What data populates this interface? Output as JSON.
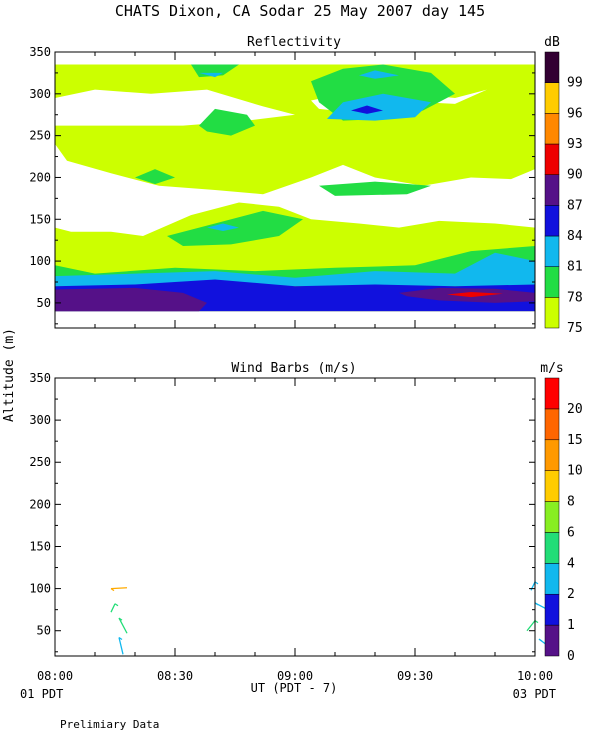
{
  "title": "CHATS Dixon, CA  Sodar  25 May 2007  day 145",
  "y_axis_label": "Altitude (m)",
  "footnote": "Prelimiary Data",
  "colors": {
    "axis": "#000000",
    "refl_palette": [
      "#ccff00",
      "#22dd44",
      "#11b8ee",
      "#1111dd",
      "#551188",
      "#ee0000",
      "#ff8800",
      "#ffcc00",
      "#330033"
    ],
    "wind_palette": [
      "#551188",
      "#1111dd",
      "#11b8ee",
      "#22dd77",
      "#88ee22",
      "#ffcc00",
      "#ff9900",
      "#ff6600",
      "#ff0000"
    ]
  },
  "chart_data": [
    {
      "type": "heatmap",
      "title": "Reflectivity",
      "colorbar_unit": "dB",
      "colorbar_ticks": [
        "75",
        "78",
        "81",
        "84",
        "87",
        "90",
        "93",
        "96",
        "99"
      ],
      "x_ticks": [
        "08:00",
        "08:30",
        "09:00",
        "09:30",
        "10:00"
      ],
      "ylim": [
        20,
        350
      ],
      "y_ticks": [
        50,
        100,
        150,
        200,
        250,
        300,
        350
      ],
      "grid": false,
      "layers": [
        {
          "level": "75",
          "color": "#ccff00",
          "polygon": [
            [
              0,
              335
            ],
            [
              120,
              335
            ],
            [
              120,
              40
            ],
            [
              0,
              40
            ]
          ]
        },
        {
          "level": "white",
          "color": "#ffffff",
          "polygon": [
            [
              0,
              240
            ],
            [
              3,
              220
            ],
            [
              14,
              205
            ],
            [
              26,
              190
            ],
            [
              40,
              185
            ],
            [
              52,
              180
            ],
            [
              64,
              200
            ],
            [
              72,
              215
            ],
            [
              80,
              200
            ],
            [
              92,
              190
            ],
            [
              104,
              200
            ],
            [
              114,
              198
            ],
            [
              120,
              210
            ],
            [
              120,
              140
            ],
            [
              110,
              145
            ],
            [
              96,
              148
            ],
            [
              86,
              140
            ],
            [
              76,
              145
            ],
            [
              64,
              150
            ],
            [
              56,
              165
            ],
            [
              46,
              170
            ],
            [
              34,
              155
            ],
            [
              22,
              130
            ],
            [
              14,
              135
            ],
            [
              4,
              135
            ],
            [
              0,
              140
            ]
          ]
        },
        {
          "level": "white",
          "color": "#ffffff",
          "polygon": [
            [
              0,
              295
            ],
            [
              10,
              305
            ],
            [
              24,
              300
            ],
            [
              38,
              305
            ],
            [
              52,
              285
            ],
            [
              60,
              275
            ],
            [
              48,
              268
            ],
            [
              32,
              262
            ],
            [
              18,
              262
            ],
            [
              0,
              262
            ]
          ]
        },
        {
          "level": "white",
          "color": "#ffffff",
          "polygon": [
            [
              64,
              292
            ],
            [
              72,
              300
            ],
            [
              80,
              290
            ],
            [
              74,
              278
            ],
            [
              66,
              282
            ]
          ]
        },
        {
          "level": "white",
          "color": "#ffffff",
          "polygon": [
            [
              90,
              300
            ],
            [
              100,
              295
            ],
            [
              108,
              305
            ],
            [
              100,
              288
            ],
            [
              92,
              290
            ]
          ]
        },
        {
          "level": "78",
          "color": "#22dd44",
          "polygon": [
            [
              0,
              95
            ],
            [
              10,
              85
            ],
            [
              30,
              92
            ],
            [
              50,
              88
            ],
            [
              70,
              92
            ],
            [
              90,
              95
            ],
            [
              104,
              112
            ],
            [
              120,
              118
            ],
            [
              120,
              70
            ],
            [
              0,
              70
            ]
          ]
        },
        {
          "level": "78",
          "color": "#22dd44",
          "polygon": [
            [
              28,
              130
            ],
            [
              40,
              145
            ],
            [
              52,
              160
            ],
            [
              62,
              150
            ],
            [
              56,
              130
            ],
            [
              44,
              120
            ],
            [
              32,
              118
            ]
          ]
        },
        {
          "level": "78",
          "color": "#22dd44",
          "polygon": [
            [
              64,
              315
            ],
            [
              72,
              330
            ],
            [
              82,
              335
            ],
            [
              94,
              325
            ],
            [
              100,
              300
            ],
            [
              92,
              280
            ],
            [
              82,
              270
            ],
            [
              72,
              268
            ],
            [
              66,
              290
            ]
          ]
        },
        {
          "level": "78",
          "color": "#22dd44",
          "polygon": [
            [
              20,
              200
            ],
            [
              25,
              210
            ],
            [
              30,
              200
            ],
            [
              25,
              192
            ]
          ]
        },
        {
          "level": "78",
          "color": "#22dd44",
          "polygon": [
            [
              34,
              335
            ],
            [
              46,
              335
            ],
            [
              42,
              322
            ],
            [
              36,
              320
            ]
          ]
        },
        {
          "level": "78",
          "color": "#22dd44",
          "polygon": [
            [
              36,
              262
            ],
            [
              40,
              282
            ],
            [
              48,
              275
            ],
            [
              50,
              262
            ],
            [
              44,
              250
            ],
            [
              38,
              255
            ]
          ]
        },
        {
          "level": "78",
          "color": "#22dd44",
          "polygon": [
            [
              66,
              190
            ],
            [
              80,
              195
            ],
            [
              94,
              190
            ],
            [
              88,
              180
            ],
            [
              70,
              178
            ]
          ]
        },
        {
          "level": "81",
          "color": "#11b8ee",
          "polygon": [
            [
              0,
              82
            ],
            [
              20,
              85
            ],
            [
              40,
              88
            ],
            [
              60,
              80
            ],
            [
              80,
              88
            ],
            [
              100,
              85
            ],
            [
              110,
              110
            ],
            [
              120,
              100
            ],
            [
              120,
              70
            ],
            [
              0,
              70
            ]
          ]
        },
        {
          "level": "81",
          "color": "#11b8ee",
          "polygon": [
            [
              68,
              270
            ],
            [
              72,
              290
            ],
            [
              82,
              300
            ],
            [
              94,
              290
            ],
            [
              90,
              272
            ],
            [
              80,
              268
            ]
          ]
        },
        {
          "level": "81",
          "color": "#11b8ee",
          "polygon": [
            [
              76,
              322
            ],
            [
              80,
              328
            ],
            [
              86,
              322
            ],
            [
              80,
              318
            ]
          ]
        },
        {
          "level": "81",
          "color": "#11b8ee",
          "polygon": [
            [
              36,
              325
            ],
            [
              42,
              325
            ],
            [
              40,
              320
            ]
          ]
        },
        {
          "level": "81",
          "color": "#11b8ee",
          "polygon": [
            [
              38,
              140
            ],
            [
              42,
              145
            ],
            [
              46,
              140
            ],
            [
              42,
              136
            ]
          ]
        },
        {
          "level": "84",
          "color": "#1111dd",
          "polygon": [
            [
              0,
              70
            ],
            [
              20,
              72
            ],
            [
              40,
              78
            ],
            [
              60,
              70
            ],
            [
              80,
              72
            ],
            [
              100,
              70
            ],
            [
              120,
              72
            ],
            [
              120,
              40
            ],
            [
              0,
              40
            ]
          ]
        },
        {
          "level": "84",
          "color": "#1111dd",
          "polygon": [
            [
              74,
              280
            ],
            [
              78,
              286
            ],
            [
              82,
              280
            ],
            [
              78,
              276
            ]
          ]
        },
        {
          "level": "87",
          "color": "#551188",
          "polygon": [
            [
              0,
              66
            ],
            [
              20,
              68
            ],
            [
              32,
              62
            ],
            [
              38,
              50
            ],
            [
              36,
              40
            ],
            [
              0,
              40
            ]
          ]
        },
        {
          "level": "87",
          "color": "#551188",
          "polygon": [
            [
              86,
              62
            ],
            [
              96,
              68
            ],
            [
              110,
              67
            ],
            [
              120,
              62
            ],
            [
              120,
              52
            ],
            [
              110,
              50
            ],
            [
              96,
              53
            ],
            [
              88,
              58
            ]
          ]
        },
        {
          "level": "90",
          "color": "#ee0000",
          "polygon": [
            [
              98,
              60
            ],
            [
              104,
              63
            ],
            [
              112,
              61
            ],
            [
              104,
              57
            ]
          ]
        }
      ]
    },
    {
      "type": "scatter",
      "title": "Wind Barbs (m/s)",
      "colorbar_unit": "m/s",
      "colorbar_ticks": [
        "0",
        "1",
        "2",
        "4",
        "6",
        "8",
        "10",
        "15",
        "20"
      ],
      "x_ticks": [
        "08:00",
        "08:30",
        "09:00",
        "09:30",
        "10:00"
      ],
      "x_sublabels": {
        "left": "01 PDT",
        "center": "UT  (PDT - 7)",
        "right": "03 PDT"
      },
      "ylim": [
        20,
        350
      ],
      "y_ticks": [
        50,
        100,
        150,
        200,
        250,
        300,
        350
      ],
      "grid": false,
      "barbs": [
        {
          "x": 14,
          "y": 100,
          "dx": 4,
          "dy": 1,
          "color": "#ffaa00"
        },
        {
          "x": 15,
          "y": 82,
          "dx": -1,
          "dy": -10,
          "color": "#22dd77"
        },
        {
          "x": 16,
          "y": 65,
          "dx": 2,
          "dy": -18,
          "color": "#22dd77"
        },
        {
          "x": 16,
          "y": 42,
          "dx": 1,
          "dy": -20,
          "color": "#11b8ee"
        },
        {
          "x": 120,
          "y": 108,
          "dx": -1,
          "dy": -10,
          "color": "#11b8ee"
        },
        {
          "x": 120,
          "y": 83,
          "dx": 4,
          "dy": -10,
          "color": "#11b8ee"
        },
        {
          "x": 120,
          "y": 62,
          "dx": -2,
          "dy": -12,
          "color": "#22dd77"
        },
        {
          "x": 121,
          "y": 40,
          "dx": 4,
          "dy": -14,
          "color": "#11b8ee"
        }
      ]
    }
  ]
}
